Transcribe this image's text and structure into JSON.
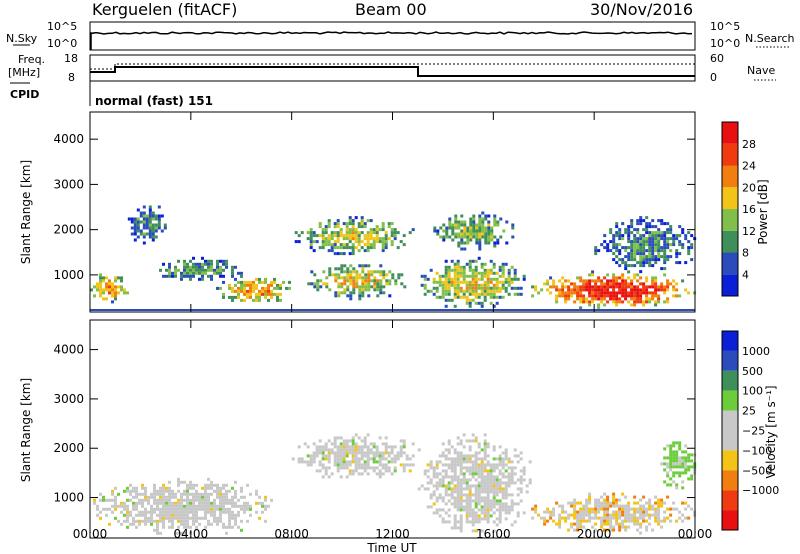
{
  "header": {
    "station": "Kerguelen (fitACF)",
    "beam": "Beam 00",
    "date": "30/Nov/2016"
  },
  "sky_panel": {
    "left_label": "N.Sky",
    "right_label": "N.Search",
    "y_ticks": [
      "10^5",
      "10^0"
    ],
    "right_ticks": [
      "10^5",
      "10^0"
    ]
  },
  "freq_panel": {
    "left_label_1": "Freq.",
    "left_label_2": "[MHz]",
    "left_ticks": [
      "18",
      "8"
    ],
    "right_ticks": [
      "60",
      "0"
    ],
    "right_label": "Nave",
    "cpid_label": "CPID",
    "cpid_text": "normal (fast) 151"
  },
  "colors": {
    "power_scale": [
      "#0a1fd6",
      "#2a4dbb",
      "#3f8f5a",
      "#7fbf4a",
      "#f2c418",
      "#f07f10",
      "#f03a10",
      "#e81010"
    ],
    "velocity_scale": [
      "#e81010",
      "#f03a10",
      "#f07f10",
      "#f2c418",
      "#c8c8c8",
      "#c8c8c8",
      "#6ccc3a",
      "#3f8f5a",
      "#2a4dbb",
      "#0a1fd6"
    ]
  },
  "chart_data": [
    {
      "type": "heatmap",
      "title": "",
      "quantity": "Power",
      "ylabel": "Slant Range [km]",
      "ylim": [
        180,
        4600
      ],
      "y_ticks": [
        1000,
        2000,
        3000,
        4000
      ],
      "xlim": [
        0,
        24
      ],
      "colorbar_label": "Power [dB]",
      "colorbar_ticks": [
        "4",
        "8",
        "12",
        "16",
        "20",
        "24",
        "28"
      ],
      "colorbar_range": [
        0,
        32
      ],
      "echo_regions": [
        {
          "t": [
            0.0,
            1.5
          ],
          "range_km": [
            400,
            1100
          ],
          "power_db": 22
        },
        {
          "t": [
            1.5,
            3.0
          ],
          "range_km": [
            1700,
            2600
          ],
          "power_db": 10
        },
        {
          "t": [
            2.5,
            6.0
          ],
          "range_km": [
            900,
            1400
          ],
          "power_db": 12
        },
        {
          "t": [
            5.0,
            8.0
          ],
          "range_km": [
            400,
            1000
          ],
          "power_db": 22
        },
        {
          "t": [
            8.5,
            12.5
          ],
          "range_km": [
            500,
            1300
          ],
          "power_db": 18
        },
        {
          "t": [
            8.0,
            12.8
          ],
          "range_km": [
            1500,
            2300
          ],
          "power_db": 16
        },
        {
          "t": [
            13.0,
            17.2
          ],
          "range_km": [
            300,
            1400
          ],
          "power_db": 18
        },
        {
          "t": [
            13.5,
            16.8
          ],
          "range_km": [
            1600,
            2400
          ],
          "power_db": 14
        },
        {
          "t": [
            17.5,
            24.0
          ],
          "range_km": [
            300,
            1100
          ],
          "power_db": 30
        },
        {
          "t": [
            20.0,
            24.0
          ],
          "range_km": [
            1100,
            2300
          ],
          "power_db": 10
        }
      ]
    },
    {
      "type": "heatmap",
      "title": "",
      "quantity": "Velocity",
      "ylabel": "Slant Range [km]",
      "xlabel": "Time UT",
      "ylim": [
        180,
        4600
      ],
      "y_ticks": [
        1000,
        2000,
        3000,
        4000
      ],
      "xlim": [
        0,
        24
      ],
      "x_ticks": [
        "00:00",
        "04:00",
        "08:00",
        "12:00",
        "16:00",
        "20:00",
        "00:00"
      ],
      "colorbar_label": "Velocity [m s⁻¹]",
      "colorbar_ticks": [
        "1000",
        "500",
        "100",
        "25",
        "−25",
        "−100",
        "−500",
        "−1000"
      ],
      "echo_regions": [
        {
          "t": [
            0.0,
            7.5
          ],
          "range_km": [
            300,
            1400
          ],
          "velocity": 0
        },
        {
          "t": [
            8.0,
            13.0
          ],
          "range_km": [
            1400,
            2300
          ],
          "velocity": 0
        },
        {
          "t": [
            13.0,
            17.5
          ],
          "range_km": [
            300,
            2300
          ],
          "velocity": 0
        },
        {
          "t": [
            17.5,
            24.0
          ],
          "range_km": [
            300,
            1100
          ],
          "velocity": -40
        },
        {
          "t": [
            22.5,
            24.0
          ],
          "range_km": [
            1200,
            2200
          ],
          "velocity": 120
        }
      ]
    }
  ]
}
